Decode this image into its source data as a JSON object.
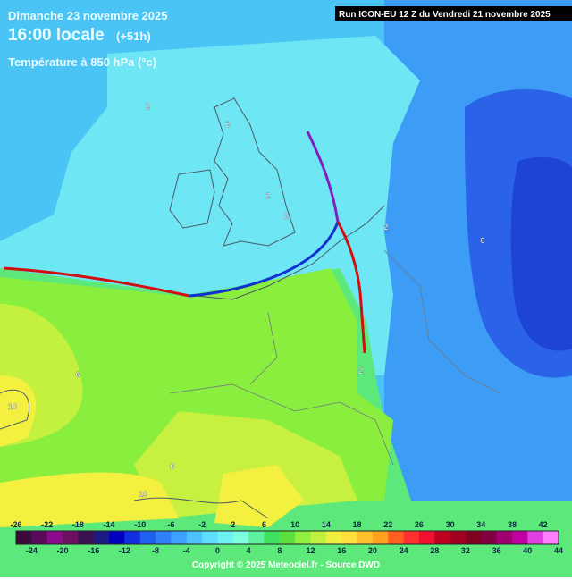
{
  "header": {
    "date": "Dimanche 23 novembre 2025",
    "time": "16:00 locale",
    "lead": "(+51h)",
    "parameter": "Température à 850 hPa (°c)",
    "run": "Run ICON-EU 12 Z du Vendredi 21 novembre 2025"
  },
  "contour_labels": [
    "2",
    "2",
    "2",
    "2",
    "2",
    "6",
    "2",
    "6",
    "10",
    "6",
    "10"
  ],
  "colorbar": {
    "top_labels": [
      "-26",
      "-22",
      "-18",
      "-14",
      "-10",
      "-6",
      "-2",
      "2",
      "6",
      "10",
      "14",
      "18",
      "22",
      "26",
      "30",
      "34",
      "38",
      "42"
    ],
    "bottom_labels": [
      "-24",
      "-20",
      "-16",
      "-12",
      "-8",
      "-4",
      "0",
      "4",
      "8",
      "12",
      "16",
      "20",
      "24",
      "28",
      "32",
      "36",
      "40",
      "44"
    ],
    "colors": [
      "#3c0a3c",
      "#5a0a5a",
      "#8c0a8c",
      "#6e1060",
      "#3a1050",
      "#1a1a80",
      "#0000c0",
      "#1030e0",
      "#2060f0",
      "#3080f8",
      "#40a0ff",
      "#50c0ff",
      "#60dcff",
      "#70f0f0",
      "#80ffe0",
      "#60f0a0",
      "#40e060",
      "#60e040",
      "#90f040",
      "#c0f040",
      "#f0f040",
      "#ffe040",
      "#ffc030",
      "#ffa020",
      "#ff6020",
      "#ff3030",
      "#f01030",
      "#c00020",
      "#a00020",
      "#800020",
      "#800040",
      "#a00070",
      "#c000a0",
      "#e040e0",
      "#ff80ff"
    ]
  },
  "copyright": "Copyright © 2025 Meteociel.fr - Source DWD"
}
